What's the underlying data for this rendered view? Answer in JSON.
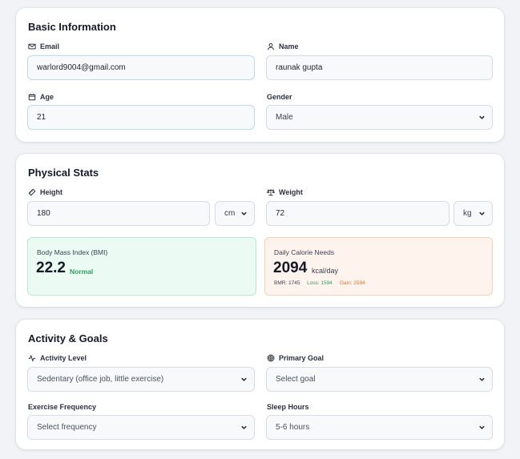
{
  "basic": {
    "title": "Basic Information",
    "email_label": "Email",
    "email_value": "warlord9004@gmail.com",
    "name_label": "Name",
    "name_value": "raunak gupta",
    "age_label": "Age",
    "age_value": "21",
    "gender_label": "Gender",
    "gender_value": "Male"
  },
  "physical": {
    "title": "Physical Stats",
    "height_label": "Height",
    "height_value": "180",
    "height_unit": "cm",
    "weight_label": "Weight",
    "weight_value": "72",
    "weight_unit": "kg",
    "bmi_label": "Body Mass Index (BMI)",
    "bmi_value": "22.2",
    "bmi_status": "Normal",
    "calorie_label": "Daily Calorie Needs",
    "calorie_value": "2094",
    "calorie_unit": "kcal/day",
    "bmr": "BMR: 1745",
    "loss": "Loss: 1594",
    "gain": "Gain: 2594"
  },
  "activity": {
    "title": "Activity & Goals",
    "activity_label": "Activity Level",
    "activity_value": "Sedentary (office job, little exercise)",
    "goal_label": "Primary Goal",
    "goal_value": "Select goal",
    "exercise_label": "Exercise Frequency",
    "exercise_value": "Select frequency",
    "sleep_label": "Sleep Hours",
    "sleep_value": "5-6 hours"
  },
  "colors": {
    "normal_green": "#2f9e5e",
    "loss_green": "#2f9e5e",
    "gain_orange": "#e0722f"
  }
}
